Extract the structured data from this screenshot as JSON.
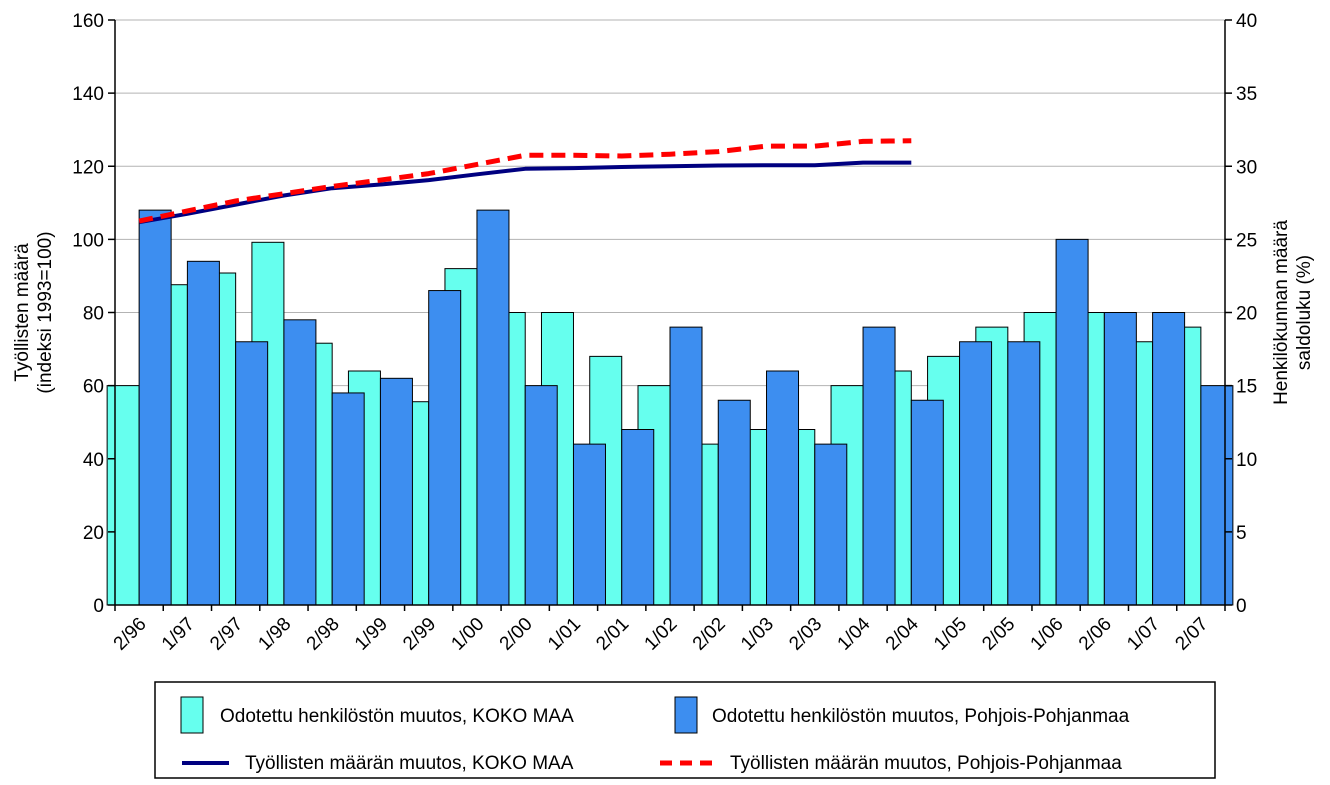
{
  "chart_data": {
    "type": "bar",
    "categories": [
      "2/96",
      "1/97",
      "2/97",
      "1/98",
      "2/98",
      "1/99",
      "2/99",
      "1/00",
      "2/00",
      "1/01",
      "2/01",
      "1/02",
      "2/02",
      "1/03",
      "2/03",
      "1/04",
      "2/04",
      "1/05",
      "2/05",
      "1/06",
      "2/06",
      "1/07",
      "2/07"
    ],
    "left_axis": {
      "label_lines": [
        "Työllisten määrä",
        "(indeksi 1993=100)"
      ],
      "ylim": [
        0,
        160
      ],
      "ticks": [
        0,
        20,
        40,
        60,
        80,
        100,
        120,
        140,
        160
      ]
    },
    "right_axis": {
      "label_lines": [
        "Henkilökunnan määrä",
        "saldoluku (%)"
      ],
      "ylim": [
        0,
        40
      ],
      "ticks": [
        0,
        5,
        10,
        15,
        20,
        25,
        30,
        35,
        40
      ]
    },
    "grid": true,
    "legend_position": "bottom",
    "series": [
      {
        "name": "Odotettu henkilöstön muutos, KOKO MAA",
        "kind": "bar",
        "axis": "right",
        "color": "#66ffee",
        "values": [
          15,
          21.9,
          22.7,
          24.8,
          17.9,
          16,
          13.9,
          23,
          20,
          20,
          17,
          15,
          11,
          12,
          12,
          15,
          16,
          17,
          19,
          20,
          20,
          18,
          19
        ]
      },
      {
        "name": "Odotettu henkilöstön muutos, Pohjois-Pohjanmaa",
        "kind": "bar",
        "axis": "right",
        "color": "#3d8ef0",
        "values": [
          27,
          23.5,
          18,
          19.5,
          14.5,
          15.5,
          21.5,
          27,
          15,
          11,
          12,
          19,
          14,
          16,
          11,
          19,
          14,
          18,
          18,
          25,
          20,
          20,
          15
        ]
      },
      {
        "name": "Työllisten määrän muutos, KOKO MAA",
        "kind": "line",
        "axis": "left",
        "color": "#000080",
        "dash": false,
        "values": [
          104.7,
          107,
          109.5,
          112,
          114,
          115,
          116.2,
          117.8,
          119.3,
          119.5,
          119.8,
          120,
          120.2,
          120.3,
          120.3,
          121,
          121,
          null,
          null,
          null,
          null,
          null,
          null
        ]
      },
      {
        "name": "Työllisten määrän muutos, Pohjois-Pohjanmaa",
        "kind": "line",
        "axis": "left",
        "color": "#ff0000",
        "dash": true,
        "values": [
          105,
          107.8,
          110.5,
          112.5,
          114.5,
          116.2,
          118,
          120.5,
          123,
          123,
          122.8,
          123.3,
          124,
          125.5,
          125.5,
          126.8,
          127,
          null,
          null,
          null,
          null,
          null,
          null
        ]
      }
    ]
  }
}
